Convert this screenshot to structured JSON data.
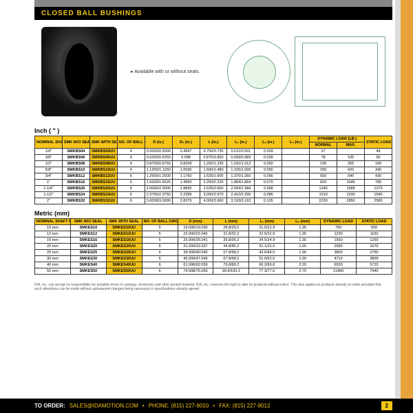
{
  "header": {
    "title": "CLOSED BALL BUSHINGS"
  },
  "note": "▸ Available with or without seals.",
  "sections": {
    "inch": "Inch ( \" )",
    "metric": "Metric (mm)"
  },
  "inchHeaders": {
    "c0": "NOMINAL SHAFT DIA.",
    "c1": "SMK W/O SEAL",
    "c2": "SMK WITH SEAL",
    "c3": "NO. OF BALL CIRCUITS",
    "c4": "D (in.)",
    "c5": "D₁ (in.)",
    "c6": "L (in.)",
    "c7": "L₁ (in.)",
    "c8": "L₂ (in.)",
    "c9": "L₃ (in.)",
    "c10": "DYNAMIC LOAD (LB.)",
    "c10a": "NORMAL",
    "c10b": "MAX.",
    "c11": "STATIC LOAD (lb.)"
  },
  "inch": [
    {
      "dia": "1/4\"",
      "a": "SMKBS04",
      "b": "SMKBS04UU",
      "n": "4",
      "d": "0.5005/0.5000",
      "d1": "0.4687",
      "l": "0.750/0.735",
      "l1": "0.511/0.501",
      "l2": "0.039",
      "nor": "57",
      "max": "",
      "st": "49"
    },
    {
      "dia": "3/8\"",
      "a": "SMKBS06",
      "b": "SMKBS06UU",
      "n": "4",
      "d": "0.6255/0.6250",
      "d1": "0.588",
      "l": "0.875/0.860",
      "l1": "0.699/0.689",
      "l2": "0.039",
      "nor": "78",
      "max": "105",
      "st": "66"
    },
    {
      "dia": "1/2\"",
      "a": "SMKBS08",
      "b": "SMKBS08UU",
      "n": "4",
      "d": "0.8755/0.8750",
      "d1": "0.8209",
      "l": "1.250/1.230",
      "l1": "1.032/1.012",
      "l2": "0.050",
      "nor": "190",
      "max": "265",
      "st": "190"
    },
    {
      "dia": "5/8\"",
      "a": "SMKBS10",
      "b": "SMKBS10UU",
      "n": "4",
      "d": "1.1255/1.1250",
      "d1": "1.0590",
      "l": "1.500/1.480",
      "l1": "1.105/1.095",
      "l2": "0.056",
      "nor": "290",
      "max": "420",
      "st": "340"
    },
    {
      "dia": "3/4\"",
      "a": "SMKBS12",
      "b": "SMKBS12UU",
      "n": "6",
      "d": "1.2505/1.2500",
      "d1": "1.1760",
      "l": "1.625/1.605",
      "l1": "1.370/1.350",
      "l2": "0.056",
      "nor": "500",
      "max": "640",
      "st": "430"
    },
    {
      "dia": "1\"",
      "a": "SMKBS16",
      "b": "SMKBS16UU",
      "n": "6",
      "d": "1.5630/1.5625",
      "d1": "1.4900",
      "l": "2.250/2.230",
      "l1": "1.884/1.864",
      "l2": "0.070",
      "nor": "820",
      "max": "1045",
      "st": "780"
    },
    {
      "dia": "1-1/4\"",
      "a": "SMKBS20",
      "b": "SMKBS20UU",
      "n": "6",
      "d": "2.0006/2.0000",
      "d1": "1.8895",
      "l": "2.625/2.600",
      "l1": "2.004/1.984",
      "l2": "0.068",
      "nor": "1240",
      "max": "1585",
      "st": "1270"
    },
    {
      "dia": "1-1/2\"",
      "a": "SMKBS24",
      "b": "SMKBS24UU",
      "n": "6",
      "d": "2.3756/2.3750",
      "d1": "2.2389",
      "l": "3.000/2.970",
      "l1": "2.410/2.390",
      "l2": "0.086",
      "nor": "1510",
      "max": "1930",
      "st": "1540"
    },
    {
      "dia": "2\"",
      "a": "SMKBS32",
      "b": "SMKBS32UU",
      "n": "6",
      "d": "3.0008/3.0000",
      "d1": "2.8379",
      "l": "4.000/3.960",
      "l1": "3.193/3.163",
      "l2": "0.105",
      "nor": "2230",
      "max": "2850",
      "st": "2580"
    }
  ],
  "metricHeaders": {
    "c0": "NOMINAL SHAFT DIA.",
    "c1": "SMK W/O SEAL",
    "c2": "SMK WITH SEAL",
    "c3": "NO. OF BALL CIRCUITS",
    "c4": "D (mm)",
    "c5": "L (mm)",
    "c6": "L₁ (mm)",
    "c7": "L₂ (mm)",
    "c8": "DYNAMIC LOAD",
    "c9": "STATIC LOAD"
  },
  "metric": [
    {
      "dia": "10 mm",
      "a": "SMKES10",
      "b": "SMKES10UU",
      "n": "5",
      "d": "19.000/19.030",
      "l": "28.8/29.2",
      "l1": "21.5/21.9",
      "l2": "1.35",
      "dy": "750",
      "st": "550"
    },
    {
      "dia": "12 mm",
      "a": "SMKES12",
      "b": "SMKES12UU",
      "n": "5",
      "d": "22.000/22.040",
      "l": "31.8/32.2",
      "l1": "22.5/22.9",
      "l2": "1.35",
      "dy": "1230",
      "st": "1100"
    },
    {
      "dia": "16 mm",
      "a": "SMKES16",
      "b": "SMKES16UU",
      "n": "5",
      "d": "25.999/26.041",
      "l": "35.8/36.2",
      "l1": "24.5/24.9",
      "l2": "1.35",
      "dy": "1550",
      "st": "1250"
    },
    {
      "dia": "20 mm",
      "a": "SMKES20",
      "b": "SMKES20UU",
      "n": "6",
      "d": "31.999/32.037",
      "l": "44.8/45.2",
      "l1": "31.1/31.5",
      "l2": "1.65",
      "dy": "2580",
      "st": "1670"
    },
    {
      "dia": "25 mm",
      "a": "SMKES25",
      "b": "SMKES25UU",
      "n": "6",
      "d": "39.999/40.049",
      "l": "57.8/58.2",
      "l1": "43.6/44.0",
      "l2": "1.90",
      "dy": "3800",
      "st": "2750"
    },
    {
      "dia": "30 mm",
      "a": "SMKES30",
      "b": "SMKES30UU",
      "n": "6",
      "d": "46.999/47.049",
      "l": "67.8/68.2",
      "l1": "51.6/52.0",
      "l2": "1.90",
      "dy": "4710",
      "st": "3800"
    },
    {
      "dia": "40 mm",
      "a": "SMKES40",
      "b": "SMKES40UU",
      "n": "6",
      "d": "61.998/62.059",
      "l": "79.8/80.2",
      "l1": "60.2/60.6",
      "l2": "2.20",
      "dy": "6520",
      "st": "5720"
    },
    {
      "dia": "50 mm",
      "a": "SMKES50",
      "b": "SMKES50UU",
      "n": "6",
      "d": "74.998/75.059",
      "l": "99.8/100.2",
      "l1": "77.3/77.6",
      "l2": "2.70",
      "dy": "11460",
      "st": "7940"
    }
  ],
  "fineprint": "IDA, Inc. can accept no responsibility for possible errors in catalogs, brochures and other printed material. IDA, Inc. reserves the right to alter its products without notice. This also applies to products already on order provided that such alterations can be made without subsequent changes being necessary in specifications already agreed.",
  "footer": {
    "label": "TO ORDER:",
    "email": "SALES@IDAMOTION.COM",
    "phone": "PHONE: (815) 227-9010",
    "fax": "FAX: (815) 227-9012",
    "page": "2"
  }
}
